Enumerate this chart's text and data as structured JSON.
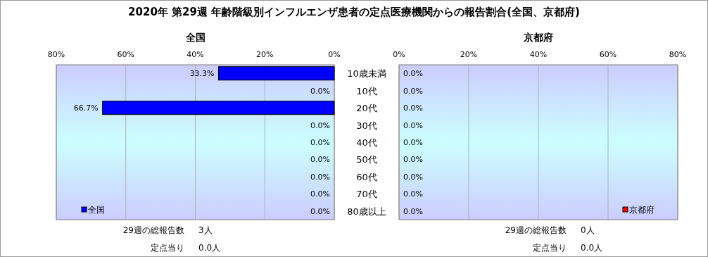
{
  "chart_data": [
    {
      "type": "bar",
      "orientation": "horizontal",
      "title": "2020年 第29週 年齢階級別インフルエンザ患者の定点医療機関からの報告割合(全国、京都府)",
      "subtitle": "全国",
      "categories": [
        "10歳未満",
        "10代",
        "20代",
        "30代",
        "40代",
        "50代",
        "60代",
        "70代",
        "80歳以上"
      ],
      "series": [
        {
          "name": "全国",
          "color": "#0000ff",
          "values": [
            33.3,
            0,
            66.7,
            0,
            0,
            0,
            0,
            0,
            0
          ],
          "value_labels": [
            "33.3%",
            "0.0%",
            "66.7%",
            "0.0%",
            "0.0%",
            "0.0%",
            "0.0%",
            "0.0%",
            "0.0%"
          ]
        }
      ],
      "xlim": [
        80,
        0
      ],
      "xticks": [
        {
          "value": 80,
          "label": "80%"
        },
        {
          "value": 60,
          "label": "60%"
        },
        {
          "value": 40,
          "label": "40%"
        },
        {
          "value": 20,
          "label": "20%"
        },
        {
          "value": 0,
          "label": "0%"
        }
      ],
      "grid": "x",
      "legend": "bottom left",
      "annotations": [
        "29週の総報告数",
        "3人",
        "定点当り",
        "0.0人"
      ]
    },
    {
      "type": "bar",
      "orientation": "horizontal",
      "subtitle": "京都府",
      "series": [
        {
          "name": "京都府",
          "color": "#ff0000",
          "values": [
            0,
            0,
            0,
            0,
            0,
            0,
            0,
            0,
            0
          ],
          "value_labels": [
            "0.0%",
            "0.0%",
            "0.0%",
            "0.0%",
            "0.0%",
            "0.0%",
            "0.0%",
            "0.0%",
            "0.0%"
          ]
        }
      ],
      "xlim": [
        0,
        80
      ],
      "xticks": [
        {
          "value": 0,
          "label": "0%"
        },
        {
          "value": 20,
          "label": "20%"
        },
        {
          "value": 40,
          "label": "40%"
        },
        {
          "value": 60,
          "label": "60%"
        },
        {
          "value": 80,
          "label": "80%"
        }
      ],
      "grid": "x",
      "legend": "bottom right",
      "annotations": [
        "29週の総報告数",
        "0人",
        "定点当り",
        "0.0人"
      ]
    }
  ]
}
